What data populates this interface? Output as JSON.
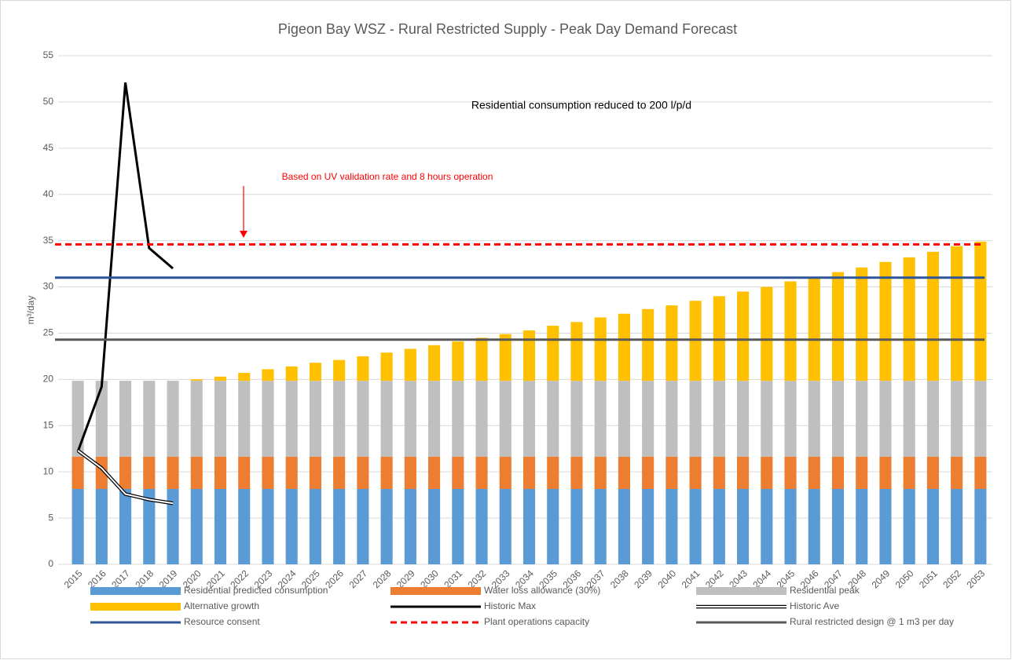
{
  "chart_data": {
    "type": "bar",
    "title": "Pigeon Bay WSZ - Rural Restricted Supply - Peak Day Demand Forecast",
    "y_label": "m³/day",
    "annotations": [
      "Residential consumption reduced to 200 l/p/d",
      "Based on UV validation rate and 8 hours operation"
    ],
    "categories": [
      "2015",
      "2016",
      "2017",
      "2018",
      "2019",
      "2020",
      "2021",
      "2022",
      "2023",
      "2024",
      "2025",
      "2026",
      "2027",
      "2028",
      "2029",
      "2030",
      "2031",
      "2032",
      "2033",
      "2034",
      "2035",
      "2036",
      "2037",
      "2038",
      "2039",
      "2040",
      "2041",
      "2042",
      "2043",
      "2044",
      "2045",
      "2046",
      "2047",
      "2048",
      "2049",
      "2050",
      "2051",
      "2052",
      "2053"
    ],
    "ylim": [
      0,
      55
    ],
    "yticks": [
      0,
      5,
      10,
      15,
      20,
      25,
      30,
      35,
      40,
      45,
      50,
      55
    ],
    "grid": true,
    "legend": "bottom",
    "stacked": true,
    "series": [
      {
        "name": "Residential predicted consumption",
        "kind": "bar",
        "color": "#5b9bd5",
        "values": [
          8.15,
          8.15,
          8.15,
          8.15,
          8.15,
          8.15,
          8.15,
          8.15,
          8.15,
          8.15,
          8.15,
          8.15,
          8.15,
          8.15,
          8.15,
          8.15,
          8.15,
          8.15,
          8.15,
          8.15,
          8.15,
          8.15,
          8.15,
          8.15,
          8.15,
          8.15,
          8.15,
          8.15,
          8.15,
          8.15,
          8.15,
          8.15,
          8.15,
          8.15,
          8.15,
          8.15,
          8.15,
          8.15,
          8.15
        ]
      },
      {
        "name": "Water loss allowance (30%)",
        "kind": "bar",
        "color": "#ed7d31",
        "values": [
          3.5,
          3.5,
          3.5,
          3.5,
          3.5,
          3.5,
          3.5,
          3.5,
          3.5,
          3.5,
          3.5,
          3.5,
          3.5,
          3.5,
          3.5,
          3.5,
          3.5,
          3.5,
          3.5,
          3.5,
          3.5,
          3.5,
          3.5,
          3.5,
          3.5,
          3.5,
          3.5,
          3.5,
          3.5,
          3.5,
          3.5,
          3.5,
          3.5,
          3.5,
          3.5,
          3.5,
          3.5,
          3.5,
          3.5
        ]
      },
      {
        "name": "Residential peak",
        "kind": "bar",
        "color": "#bfbfbf",
        "values": [
          8.2,
          8.2,
          8.2,
          8.2,
          8.2,
          8.2,
          8.2,
          8.2,
          8.2,
          8.2,
          8.2,
          8.2,
          8.2,
          8.2,
          8.2,
          8.2,
          8.2,
          8.2,
          8.2,
          8.2,
          8.2,
          8.2,
          8.2,
          8.2,
          8.2,
          8.2,
          8.2,
          8.2,
          8.2,
          8.2,
          8.2,
          8.2,
          8.2,
          8.2,
          8.2,
          8.2,
          8.2,
          8.2,
          8.2
        ]
      },
      {
        "name": "Alternative growth",
        "kind": "bar",
        "color": "#ffc000",
        "values": [
          0,
          0,
          0,
          0,
          0,
          0.15,
          0.45,
          0.85,
          1.25,
          1.55,
          1.95,
          2.25,
          2.65,
          3.05,
          3.45,
          3.85,
          4.25,
          4.65,
          5.05,
          5.45,
          5.95,
          6.35,
          6.85,
          7.25,
          7.75,
          8.15,
          8.65,
          9.15,
          9.65,
          10.15,
          10.75,
          11.25,
          11.75,
          12.25,
          12.85,
          13.35,
          13.95,
          14.55,
          15.05
        ]
      },
      {
        "name": "Historic Max",
        "kind": "line",
        "color": "#000000",
        "values": [
          12.2,
          19.2,
          52.1,
          34.2,
          32.0,
          null,
          null,
          null,
          null,
          null,
          null,
          null,
          null,
          null,
          null,
          null,
          null,
          null,
          null,
          null,
          null,
          null,
          null,
          null,
          null,
          null,
          null,
          null,
          null,
          null,
          null,
          null,
          null,
          null,
          null,
          null,
          null,
          null,
          null
        ]
      },
      {
        "name": "Historic Ave",
        "kind": "double-line",
        "color": "#000000",
        "values": [
          12.3,
          10.4,
          7.6,
          7.0,
          6.6,
          null,
          null,
          null,
          null,
          null,
          null,
          null,
          null,
          null,
          null,
          null,
          null,
          null,
          null,
          null,
          null,
          null,
          null,
          null,
          null,
          null,
          null,
          null,
          null,
          null,
          null,
          null,
          null,
          null,
          null,
          null,
          null,
          null,
          null
        ]
      },
      {
        "name": "Resource consent",
        "kind": "hline",
        "color": "#2f5597",
        "value": 31
      },
      {
        "name": "Plant operations capacity",
        "kind": "hline",
        "color": "#ff0000",
        "dashed": true,
        "value": 34.6
      },
      {
        "name": "Rural restricted design @ 1 m3 per day",
        "kind": "hline",
        "color": "#595959",
        "value": 24.3
      }
    ]
  }
}
